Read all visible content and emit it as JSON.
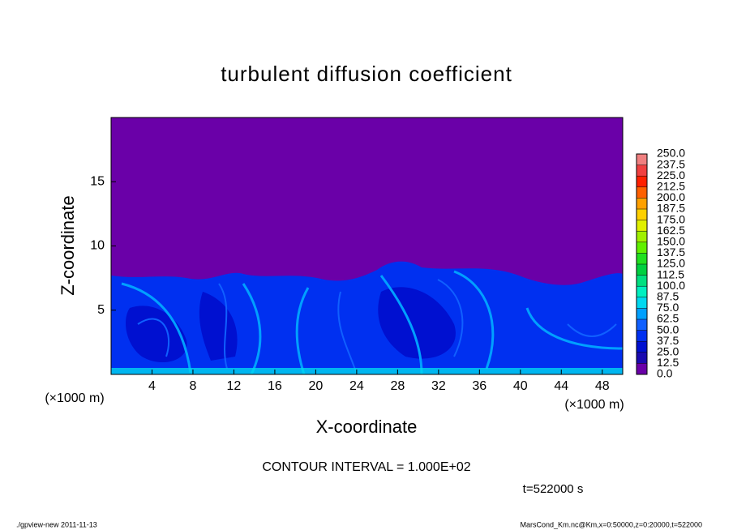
{
  "chart_data": {
    "type": "contour",
    "title": "turbulent diffusion coefficient",
    "x_label": "X-coordinate",
    "y_label": "Z-coordinate",
    "x_unit": "(×1000 m)",
    "y_unit": "(×1000 m)",
    "xlim": [
      0,
      50
    ],
    "xticks": [
      4,
      8,
      12,
      16,
      20,
      24,
      28,
      32,
      36,
      40,
      44,
      48
    ],
    "ylim": [
      0,
      20
    ],
    "yticks": [
      5,
      10,
      15
    ],
    "levels": [
      {
        "value": 0,
        "label": "0.0"
      },
      {
        "value": 12.5,
        "label": "12.5"
      },
      {
        "value": 25,
        "label": "25.0"
      },
      {
        "value": 37.5,
        "label": "37.5"
      },
      {
        "value": 50,
        "label": "50.0"
      },
      {
        "value": 62.5,
        "label": "62.5"
      },
      {
        "value": 75,
        "label": "75.0"
      },
      {
        "value": 87.5,
        "label": "87.5"
      },
      {
        "value": 100,
        "label": "100.0"
      },
      {
        "value": 112.5,
        "label": "112.5"
      },
      {
        "value": 125,
        "label": "125.0"
      },
      {
        "value": 137.5,
        "label": "137.5"
      },
      {
        "value": 150,
        "label": "150.0"
      },
      {
        "value": 162.5,
        "label": "162.5"
      },
      {
        "value": 175,
        "label": "175.0"
      },
      {
        "value": 187.5,
        "label": "187.5"
      },
      {
        "value": 200,
        "label": "200.0"
      },
      {
        "value": 212.5,
        "label": "212.5"
      },
      {
        "value": 225,
        "label": "225.0"
      },
      {
        "value": 237.5,
        "label": "237.5"
      },
      {
        "value": 250,
        "label": "250.0"
      }
    ],
    "colors": [
      "#6a00a8",
      "#1a0ab0",
      "#0010d0",
      "#0030f0",
      "#1060ff",
      "#00a0ff",
      "#00d8f0",
      "#00f0c0",
      "#00e080",
      "#00d040",
      "#20e020",
      "#60f000",
      "#a0f000",
      "#e0f000",
      "#ffd000",
      "#ffa000",
      "#ff6000",
      "#ff2000",
      "#f04040",
      "#f08080"
    ],
    "contour_interval": "CONTOUR INTERVAL = 1.000E+02",
    "time_label": "t=522000 s",
    "footer_left": "./gpview-new  2011-11-13",
    "footer_right": "MarsCond_Km.nc@Km,x=0:50000,z=0:20000,t=522000"
  }
}
